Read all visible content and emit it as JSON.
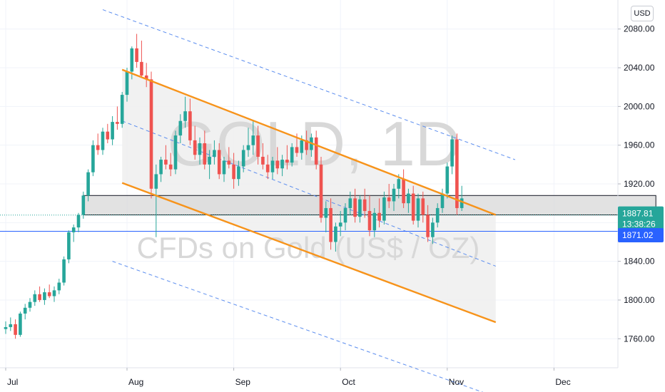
{
  "currency_button": "USD",
  "watermark": {
    "symbol": "GOLD, 1D",
    "description": "CFDs on Gold (US$ / OZ)"
  },
  "chart_data": {
    "type": "candlestick",
    "symbol": "GOLD",
    "interval": "1D",
    "ylim": [
      1730,
      2110
    ],
    "y_ticks": [
      1760,
      1800,
      1840,
      1880,
      1920,
      1960,
      2000,
      2040,
      2080
    ],
    "y_tick_labels": [
      "1760.00",
      "1800.00",
      "1840.00",
      "1880.00",
      "1920.00",
      "1960.00",
      "2000.00",
      "2040.00",
      "2080.00"
    ],
    "x_labels": [
      {
        "label": "Jul",
        "index": 0
      },
      {
        "label": "Aug",
        "index": 25
      },
      {
        "label": "Sep",
        "index": 47
      },
      {
        "label": "Oct",
        "index": 69
      },
      {
        "label": "Nov",
        "index": 91
      },
      {
        "label": "Dec",
        "index": 113
      }
    ],
    "candles": [
      [
        1770,
        1778,
        1765,
        1772
      ],
      [
        1772,
        1782,
        1768,
        1775
      ],
      [
        1775,
        1780,
        1760,
        1764
      ],
      [
        1764,
        1788,
        1762,
        1786
      ],
      [
        1786,
        1796,
        1780,
        1792
      ],
      [
        1792,
        1802,
        1788,
        1798
      ],
      [
        1798,
        1810,
        1794,
        1806
      ],
      [
        1806,
        1814,
        1798,
        1800
      ],
      [
        1800,
        1812,
        1795,
        1808
      ],
      [
        1808,
        1816,
        1802,
        1804
      ],
      [
        1804,
        1814,
        1798,
        1810
      ],
      [
        1810,
        1822,
        1806,
        1818
      ],
      [
        1818,
        1845,
        1815,
        1842
      ],
      [
        1842,
        1872,
        1838,
        1870
      ],
      [
        1870,
        1878,
        1860,
        1875
      ],
      [
        1875,
        1890,
        1870,
        1888
      ],
      [
        1888,
        1912,
        1884,
        1908
      ],
      [
        1908,
        1935,
        1902,
        1932
      ],
      [
        1932,
        1965,
        1928,
        1960
      ],
      [
        1960,
        1972,
        1950,
        1955
      ],
      [
        1955,
        1978,
        1950,
        1974
      ],
      [
        1974,
        1982,
        1962,
        1966
      ],
      [
        1966,
        1990,
        1960,
        1984
      ],
      [
        1984,
        2000,
        1976,
        1982
      ],
      [
        1982,
        2015,
        1978,
        2012
      ],
      [
        2012,
        2040,
        2005,
        2036
      ],
      [
        2036,
        2062,
        2028,
        2060
      ],
      [
        2060,
        2075,
        2040,
        2046
      ],
      [
        2046,
        2068,
        2030,
        2032
      ],
      [
        2032,
        2045,
        2020,
        2028
      ],
      [
        2028,
        2036,
        1905,
        1915
      ],
      [
        1915,
        1940,
        1865,
        1930
      ],
      [
        1930,
        1948,
        1922,
        1945
      ],
      [
        1945,
        1960,
        1935,
        1940
      ],
      [
        1940,
        1952,
        1928,
        1935
      ],
      [
        1935,
        1975,
        1930,
        1970
      ],
      [
        1970,
        1992,
        1962,
        1985
      ],
      [
        1985,
        2010,
        1978,
        1995
      ],
      [
        1995,
        2008,
        1960,
        1965
      ],
      [
        1965,
        1980,
        1945,
        1950
      ],
      [
        1950,
        1968,
        1940,
        1962
      ],
      [
        1962,
        1975,
        1935,
        1940
      ],
      [
        1940,
        1955,
        1925,
        1948
      ],
      [
        1948,
        1965,
        1940,
        1955
      ],
      [
        1955,
        1962,
        1925,
        1930
      ],
      [
        1930,
        1948,
        1922,
        1944
      ],
      [
        1944,
        1958,
        1936,
        1940
      ],
      [
        1940,
        1952,
        1915,
        1925
      ],
      [
        1925,
        1944,
        1918,
        1938
      ],
      [
        1938,
        1960,
        1932,
        1955
      ],
      [
        1955,
        1978,
        1948,
        1960
      ],
      [
        1960,
        1985,
        1950,
        1970
      ],
      [
        1970,
        1980,
        1940,
        1948
      ],
      [
        1948,
        1962,
        1935,
        1940
      ],
      [
        1940,
        1950,
        1925,
        1932
      ],
      [
        1932,
        1948,
        1925,
        1944
      ],
      [
        1944,
        1958,
        1930,
        1936
      ],
      [
        1936,
        1950,
        1928,
        1945
      ],
      [
        1945,
        1960,
        1935,
        1942
      ],
      [
        1942,
        1962,
        1938,
        1958
      ],
      [
        1958,
        1972,
        1948,
        1952
      ],
      [
        1952,
        1970,
        1945,
        1965
      ],
      [
        1965,
        1975,
        1950,
        1955
      ],
      [
        1955,
        1972,
        1948,
        1968
      ],
      [
        1968,
        1975,
        1935,
        1940
      ],
      [
        1940,
        1948,
        1880,
        1885
      ],
      [
        1885,
        1902,
        1870,
        1895
      ],
      [
        1895,
        1905,
        1852,
        1860
      ],
      [
        1860,
        1880,
        1850,
        1876
      ],
      [
        1876,
        1892,
        1866,
        1880
      ],
      [
        1880,
        1900,
        1872,
        1895
      ],
      [
        1895,
        1912,
        1888,
        1905
      ],
      [
        1905,
        1915,
        1880,
        1886
      ],
      [
        1886,
        1908,
        1880,
        1904
      ],
      [
        1904,
        1915,
        1885,
        1892
      ],
      [
        1892,
        1908,
        1866,
        1872
      ],
      [
        1872,
        1895,
        1865,
        1890
      ],
      [
        1890,
        1905,
        1875,
        1882
      ],
      [
        1882,
        1912,
        1878,
        1906
      ],
      [
        1906,
        1920,
        1895,
        1902
      ],
      [
        1902,
        1920,
        1892,
        1915
      ],
      [
        1915,
        1930,
        1905,
        1925
      ],
      [
        1925,
        1935,
        1895,
        1900
      ],
      [
        1900,
        1915,
        1890,
        1910
      ],
      [
        1910,
        1918,
        1878,
        1882
      ],
      [
        1882,
        1910,
        1875,
        1905
      ],
      [
        1905,
        1912,
        1880,
        1888
      ],
      [
        1888,
        1898,
        1860,
        1865
      ],
      [
        1865,
        1885,
        1858,
        1880
      ],
      [
        1880,
        1900,
        1875,
        1895
      ],
      [
        1895,
        1915,
        1890,
        1910
      ],
      [
        1910,
        1942,
        1905,
        1938
      ],
      [
        1938,
        1970,
        1930,
        1966
      ],
      [
        1966,
        1972,
        1888,
        1895
      ],
      [
        1895,
        1918,
        1892,
        1905
      ]
    ],
    "current_price": {
      "value": 1871.02,
      "label": "1871.02",
      "color": "#2962ff"
    },
    "last_price": {
      "value": 1887.81,
      "label": "1887.81",
      "countdown": "13:38:26",
      "color": "#26a69a"
    },
    "support_resistance_zone": {
      "top": 1908,
      "bottom": 1888,
      "from_index": 16,
      "to_index": 134
    },
    "channel_solid": [
      {
        "x1": 24,
        "y1": 2038,
        "x2": 101,
        "y2": 1888,
        "color": "#f7931a"
      },
      {
        "x1": 24,
        "y1": 1921,
        "x2": 101,
        "y2": 1777,
        "color": "#f7931a"
      }
    ],
    "channel_dashed": [
      {
        "x1": 20,
        "y1": 2100,
        "x2": 105,
        "y2": 1945,
        "color": "#5b8def"
      },
      {
        "x1": 24,
        "y1": 1985,
        "x2": 101,
        "y2": 1835,
        "color": "#5b8def"
      },
      {
        "x1": 22,
        "y1": 1840,
        "x2": 101,
        "y2": 1700,
        "color": "#5b8def"
      }
    ],
    "colors": {
      "up": "#26a69a",
      "down": "#ef5350",
      "zone_fill": "#d5d5d5",
      "channel_fill": "#efefef"
    }
  }
}
